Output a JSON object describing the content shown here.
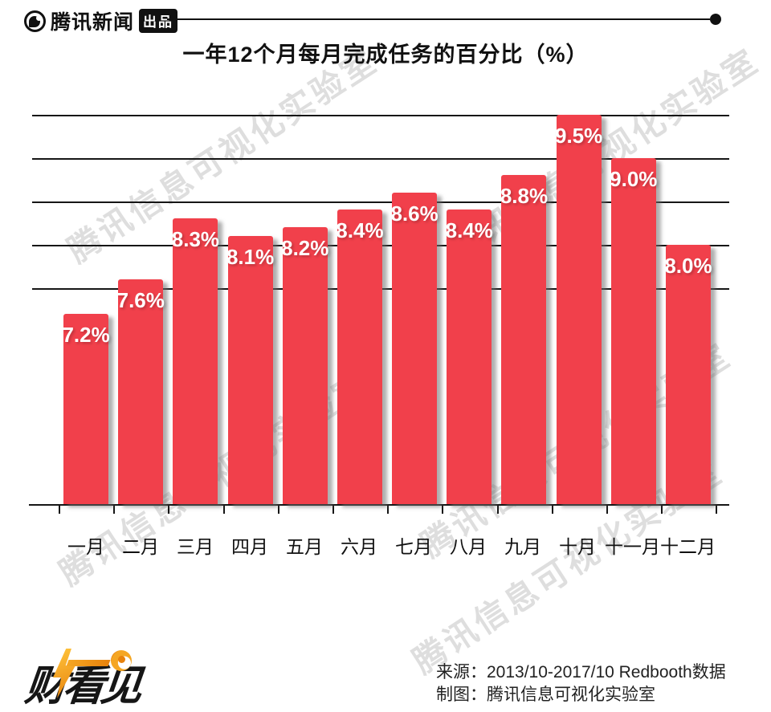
{
  "header": {
    "brand": "腾讯新闻",
    "badge": "出品"
  },
  "chart_data": {
    "type": "bar",
    "title": "一年12个月每月完成任务的百分比（%）",
    "categories": [
      "一月",
      "二月",
      "三月",
      "四月",
      "五月",
      "六月",
      "七月",
      "八月",
      "九月",
      "十月",
      "十一月",
      "十二月"
    ],
    "values": [
      7.2,
      7.6,
      8.3,
      8.1,
      8.2,
      8.4,
      8.6,
      8.4,
      8.8,
      9.5,
      9.0,
      8.0
    ],
    "data_labels": [
      "7.2%",
      "7.6%",
      "8.3%",
      "8.1%",
      "8.2%",
      "8.4%",
      "8.6%",
      "8.4%",
      "8.8%",
      "9.5%",
      "9.0%",
      "8.0%"
    ],
    "xlabel": "",
    "ylabel": "",
    "ylim": [
      5.0,
      9.9
    ],
    "gridline_values": [
      7.5,
      8.0,
      8.5,
      9.0,
      9.5
    ],
    "grid": true,
    "legend": false,
    "bar_color": "#F1404B",
    "label_color": "#ffffff"
  },
  "watermark": {
    "text": "腾讯信息可视化实验室"
  },
  "footer": {
    "logo_text": "财看见",
    "source_line": "来源：2013/10-2017/10 Redbooth数据",
    "credit_line": "制图：腾讯信息可视化实验室"
  }
}
